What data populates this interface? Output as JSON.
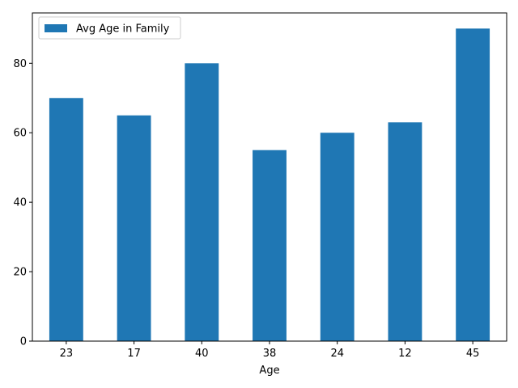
{
  "chart_data": {
    "type": "bar",
    "categories": [
      "23",
      "17",
      "40",
      "38",
      "24",
      "12",
      "45"
    ],
    "series": [
      {
        "name": "Avg Age in Family",
        "values": [
          70,
          65,
          80,
          55,
          60,
          63,
          90
        ],
        "color": "#1f77b4"
      }
    ],
    "xlabel": "Age",
    "ylabel": "",
    "ylim": [
      0,
      94.5
    ],
    "yticks": [
      0,
      20,
      40,
      60,
      80
    ],
    "grid": false,
    "legend_position": "top-left"
  }
}
